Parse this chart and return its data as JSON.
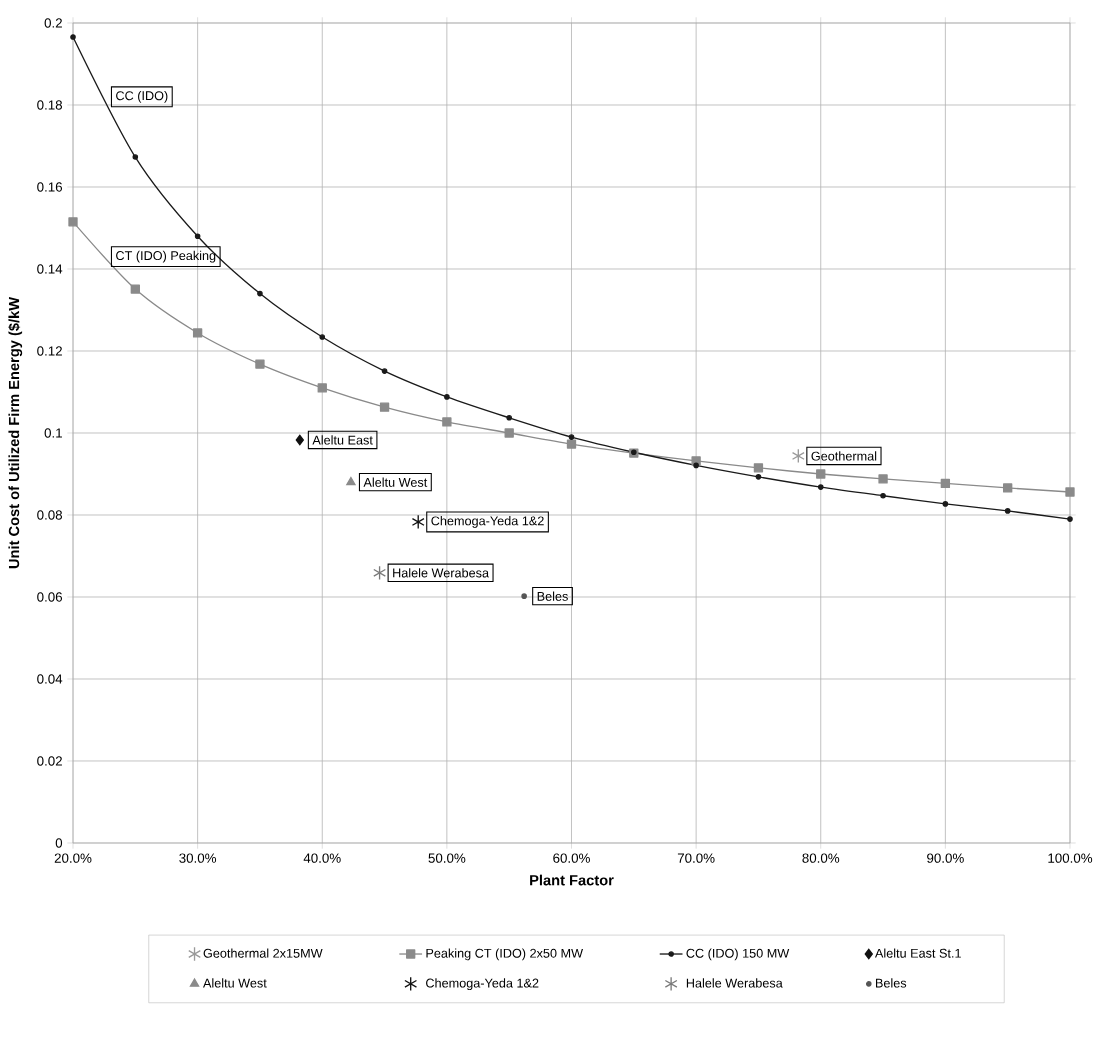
{
  "chart_data": {
    "type": "line",
    "xlabel": "Plant Factor",
    "ylabel": "Unit Cost of Utilized Firm Energy ($/kW",
    "x": [
      20,
      25,
      30,
      35,
      40,
      45,
      50,
      55,
      60,
      65,
      70,
      75,
      80,
      85,
      90,
      95,
      100
    ],
    "xlim": [
      20,
      100
    ],
    "xticks": [
      {
        "value": 20,
        "label": "20.0%"
      },
      {
        "value": 30,
        "label": "30.0%"
      },
      {
        "value": 40,
        "label": "40.0%"
      },
      {
        "value": 50,
        "label": "50.0%"
      },
      {
        "value": 60,
        "label": "60.0%"
      },
      {
        "value": 70,
        "label": "70.0%"
      },
      {
        "value": 80,
        "label": "80.0%"
      },
      {
        "value": 90,
        "label": "90.0%"
      },
      {
        "value": 100,
        "label": "100.0%"
      }
    ],
    "ylim": [
      0,
      0.2
    ],
    "yticks": [
      0,
      0.02,
      0.04,
      0.06,
      0.08,
      0.1,
      0.12,
      0.14,
      0.16,
      0.18,
      0.2
    ],
    "grid": true,
    "legend": "bottom",
    "series": [
      {
        "name": "Geothermal 2x15MW",
        "type": "scatter",
        "color": "#9a9a9a",
        "marker": "cross",
        "x": [
          78.2
        ],
        "values": [
          0.0944
        ]
      },
      {
        "name": "Peaking CT (IDO) 2x50 MW",
        "color": "#8a8a8a",
        "marker": "square",
        "values": [
          0.1515,
          0.1351,
          0.1244,
          0.1168,
          0.111,
          0.1063,
          0.1027,
          0.1,
          0.0973,
          0.0951,
          0.0932,
          0.0915,
          0.09,
          0.0888,
          0.0877,
          0.0866,
          0.0856
        ]
      },
      {
        "name": "CC (IDO) 150 MW",
        "color": "#1a1a1a",
        "marker": "circle",
        "values": [
          0.1966,
          0.1673,
          0.148,
          0.134,
          0.1234,
          0.1151,
          0.1088,
          0.1037,
          0.099,
          0.0953,
          0.0921,
          0.0893,
          0.0868,
          0.0847,
          0.0827,
          0.081,
          0.079
        ]
      },
      {
        "name": "Aleltu East St.1",
        "type": "scatter",
        "color": "#111111",
        "marker": "diamond",
        "x": [
          38.2
        ],
        "values": [
          0.0983
        ]
      },
      {
        "name": "Aleltu West",
        "type": "scatter",
        "color": "#8a8a8a",
        "marker": "triangle",
        "x": [
          42.3
        ],
        "values": [
          0.088
        ]
      },
      {
        "name": "Chemoga-Yeda 1&2",
        "type": "scatter",
        "color": "#111111",
        "marker": "cross",
        "x": [
          47.7
        ],
        "values": [
          0.0783
        ]
      },
      {
        "name": "Halele Werabesa",
        "type": "scatter",
        "color": "#7a7a7a",
        "marker": "cross",
        "x": [
          44.6
        ],
        "values": [
          0.0659
        ]
      },
      {
        "name": "Beles",
        "type": "scatter",
        "color": "#555555",
        "marker": "circle",
        "x": [
          56.2
        ],
        "values": [
          0.0602
        ]
      }
    ],
    "annotations": [
      {
        "text": "CC (IDO)",
        "x": 22.4,
        "y": 0.182
      },
      {
        "text": "CT (IDO) Peaking",
        "x": 22.4,
        "y": 0.143
      },
      {
        "text": "Aleltu East",
        "x": 38.2,
        "y": 0.0983
      },
      {
        "text": "Aleltu West",
        "x": 42.3,
        "y": 0.088
      },
      {
        "text": "Chemoga-Yeda 1&2",
        "x": 47.7,
        "y": 0.0783
      },
      {
        "text": "Halele Werabesa",
        "x": 44.6,
        "y": 0.0659
      },
      {
        "text": "Beles",
        "x": 56.2,
        "y": 0.0602
      },
      {
        "text": "Geothermal",
        "x": 78.2,
        "y": 0.0944
      }
    ]
  }
}
